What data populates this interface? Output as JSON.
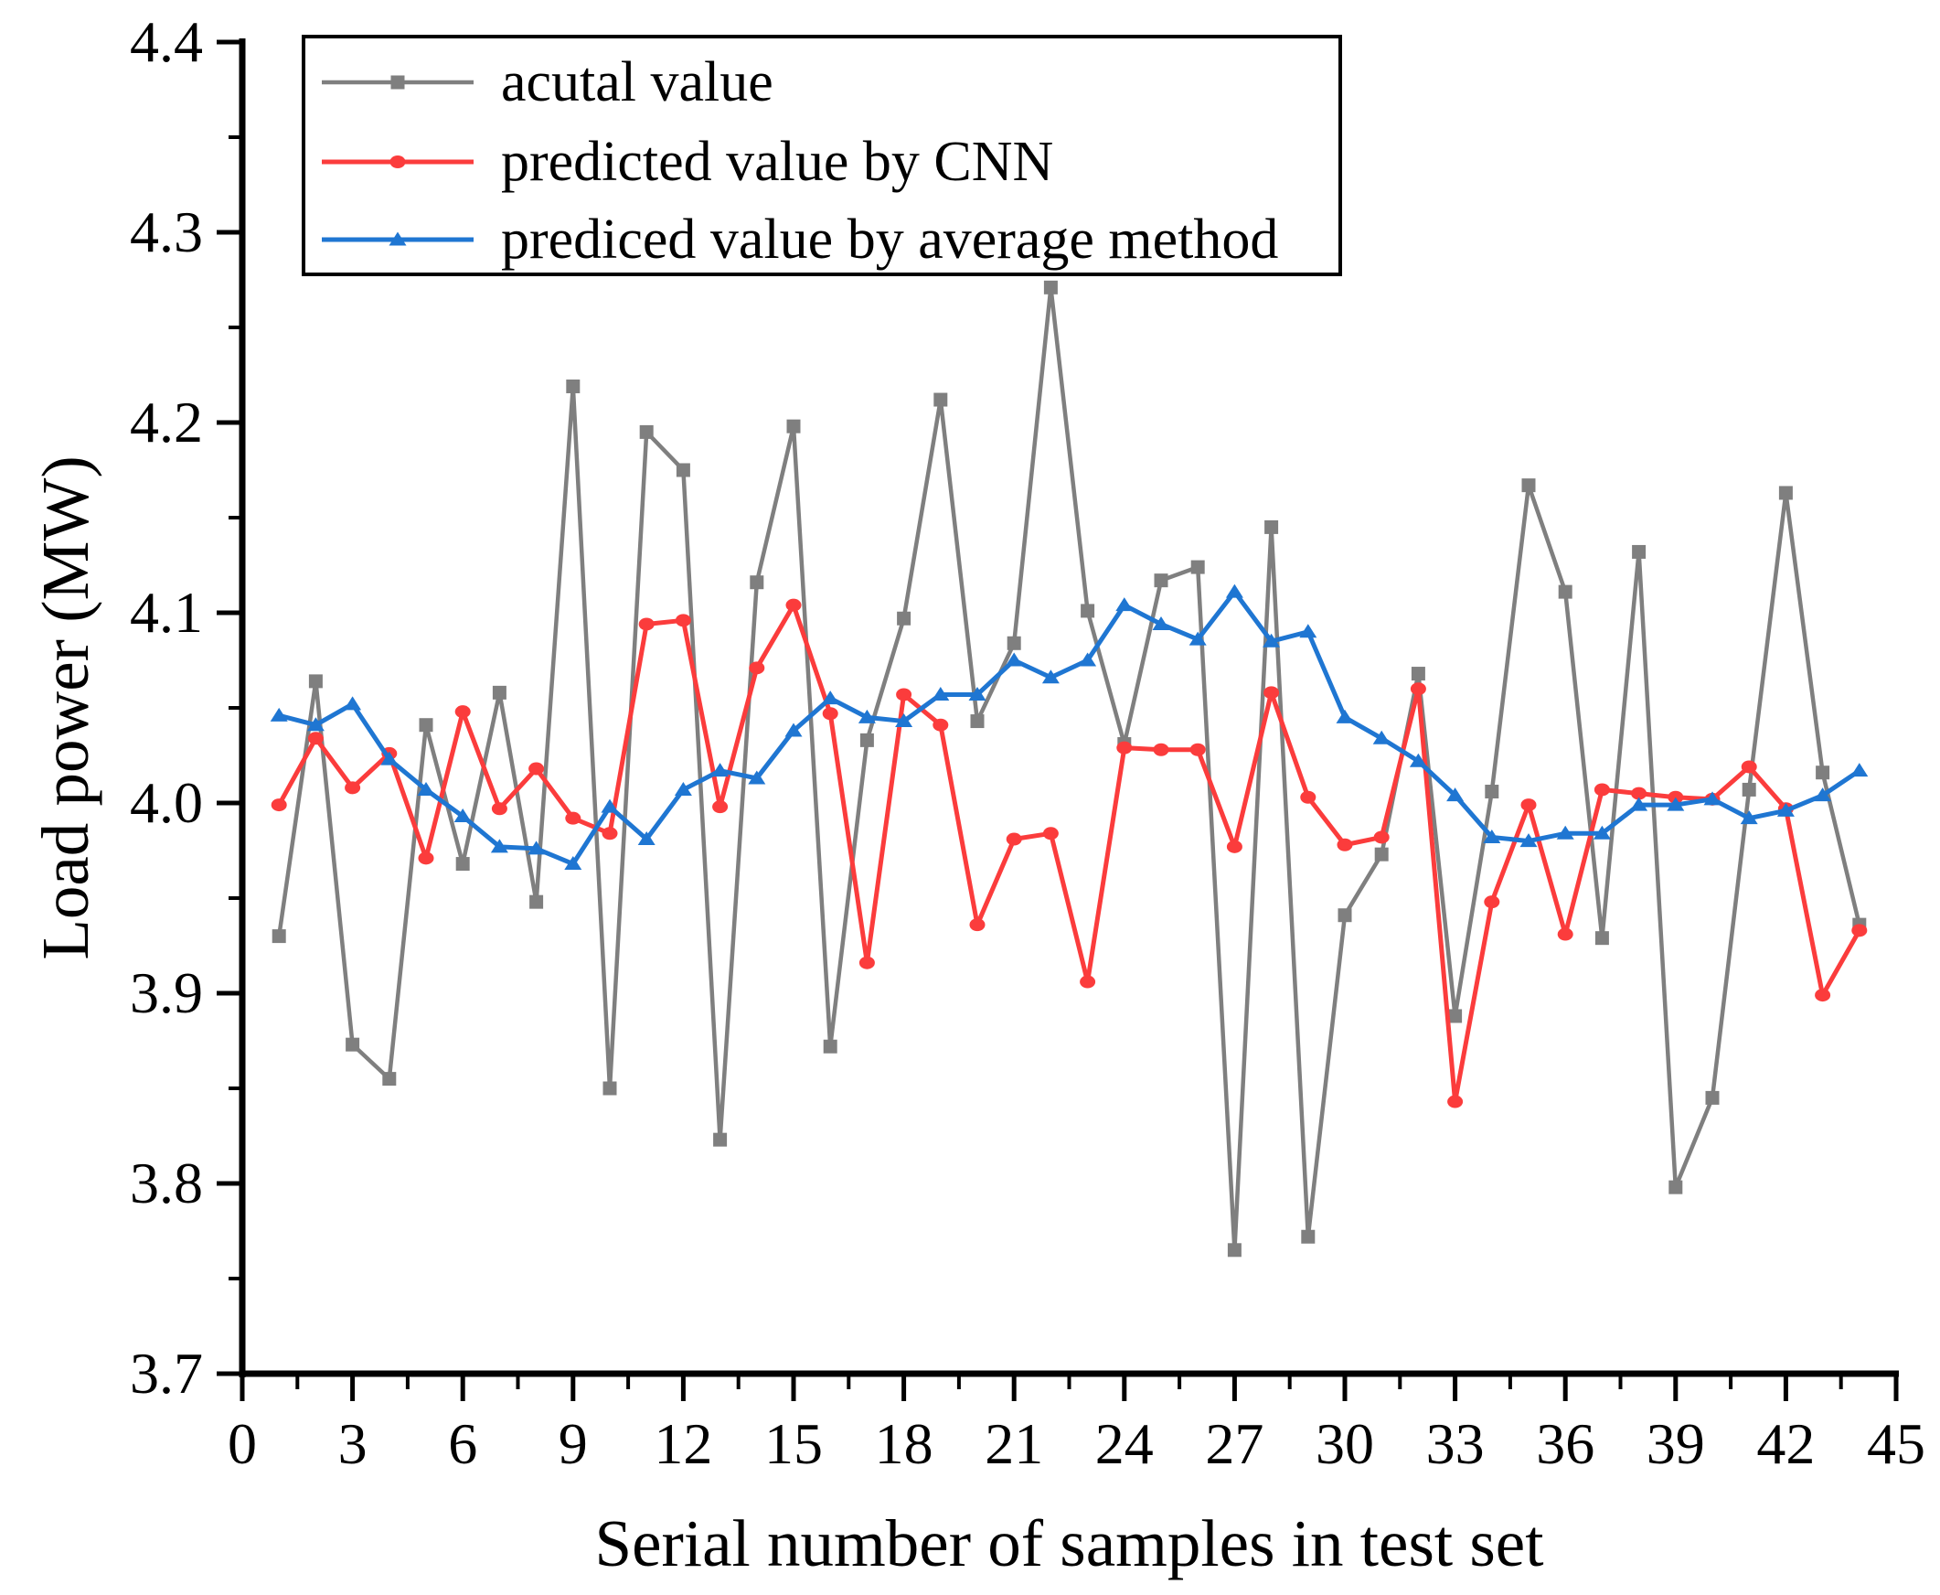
{
  "figure": {
    "background_color": "#ffffff",
    "axis_color": "#000000",
    "x_axis": {
      "title": "Serial number of samples in test set",
      "min": 0,
      "max": 45,
      "major_tick_step": 3,
      "minor_tick_step": 1.5,
      "tick_labels": [
        "0",
        "3",
        "6",
        "9",
        "12",
        "15",
        "18",
        "21",
        "24",
        "27",
        "30",
        "33",
        "36",
        "39",
        "42",
        "45"
      ]
    },
    "y_axis": {
      "title": "Load power (MW)",
      "min": 3.7,
      "max": 4.4,
      "major_tick_step": 0.1,
      "minor_tick_step": 0.05,
      "tick_labels": [
        "3.7",
        "3.8",
        "3.9",
        "4.0",
        "4.1",
        "4.2",
        "4.3",
        "4.4"
      ]
    },
    "legend": {
      "position": "top-left",
      "border_color": "#000000",
      "items": [
        "acutal value",
        "predicted value by CNN",
        "prediced value by average method"
      ]
    }
  },
  "chart_data": {
    "type": "line",
    "title": "",
    "xlabel": "Serial number of samples in test set",
    "ylabel": "Load power (MW)",
    "xlim": [
      0,
      45
    ],
    "ylim": [
      3.7,
      4.4
    ],
    "grid": false,
    "legend_position": "top-left",
    "x": [
      1,
      2,
      3,
      4,
      5,
      6,
      7,
      8,
      9,
      10,
      11,
      12,
      13,
      14,
      15,
      16,
      17,
      18,
      19,
      20,
      21,
      22,
      23,
      24,
      25,
      26,
      27,
      28,
      29,
      30,
      31,
      32,
      33,
      34,
      35,
      36,
      37,
      38,
      39,
      40,
      41,
      42,
      43,
      44
    ],
    "series": [
      {
        "name": "acutal value",
        "marker": "square",
        "color": "#7f7f7f",
        "values": [
          3.93,
          4.064,
          3.873,
          3.855,
          4.041,
          3.968,
          4.058,
          3.948,
          4.219,
          3.85,
          4.195,
          4.175,
          3.823,
          4.116,
          4.198,
          3.872,
          4.033,
          4.097,
          4.212,
          4.043,
          4.084,
          4.271,
          4.101,
          4.031,
          4.117,
          4.124,
          3.765,
          4.145,
          3.772,
          3.941,
          3.973,
          4.068,
          3.888,
          4.006,
          4.167,
          4.111,
          3.929,
          4.132,
          3.798,
          3.845,
          4.007,
          4.163,
          4.016,
          3.936
        ]
      },
      {
        "name": "predicted value by CNN",
        "marker": "circle",
        "color": "#fb3c3c",
        "values": [
          3.999,
          4.034,
          4.008,
          4.026,
          3.971,
          4.048,
          3.997,
          4.018,
          3.992,
          3.984,
          4.094,
          4.096,
          3.998,
          4.071,
          4.104,
          4.047,
          3.916,
          4.057,
          4.041,
          3.936,
          3.981,
          3.984,
          3.906,
          4.029,
          4.028,
          4.028,
          3.977,
          4.058,
          4.003,
          3.978,
          3.982,
          4.06,
          3.843,
          3.948,
          3.999,
          3.931,
          4.007,
          4.005,
          4.003,
          4.002,
          4.019,
          3.997,
          3.899,
          3.933
        ]
      },
      {
        "name": "prediced value by average method",
        "marker": "triangle",
        "color": "#1f76d2",
        "values": [
          4.046,
          4.041,
          4.052,
          4.023,
          4.007,
          3.993,
          3.977,
          3.976,
          3.968,
          3.998,
          3.981,
          4.007,
          4.017,
          4.013,
          4.038,
          4.055,
          4.045,
          4.043,
          4.057,
          4.057,
          4.075,
          4.066,
          4.075,
          4.104,
          4.094,
          4.086,
          4.111,
          4.085,
          4.09,
          4.045,
          4.034,
          4.022,
          4.004,
          3.982,
          3.98,
          3.984,
          3.984,
          3.999,
          3.999,
          4.002,
          3.992,
          3.996,
          4.004,
          4.017
        ]
      }
    ]
  }
}
